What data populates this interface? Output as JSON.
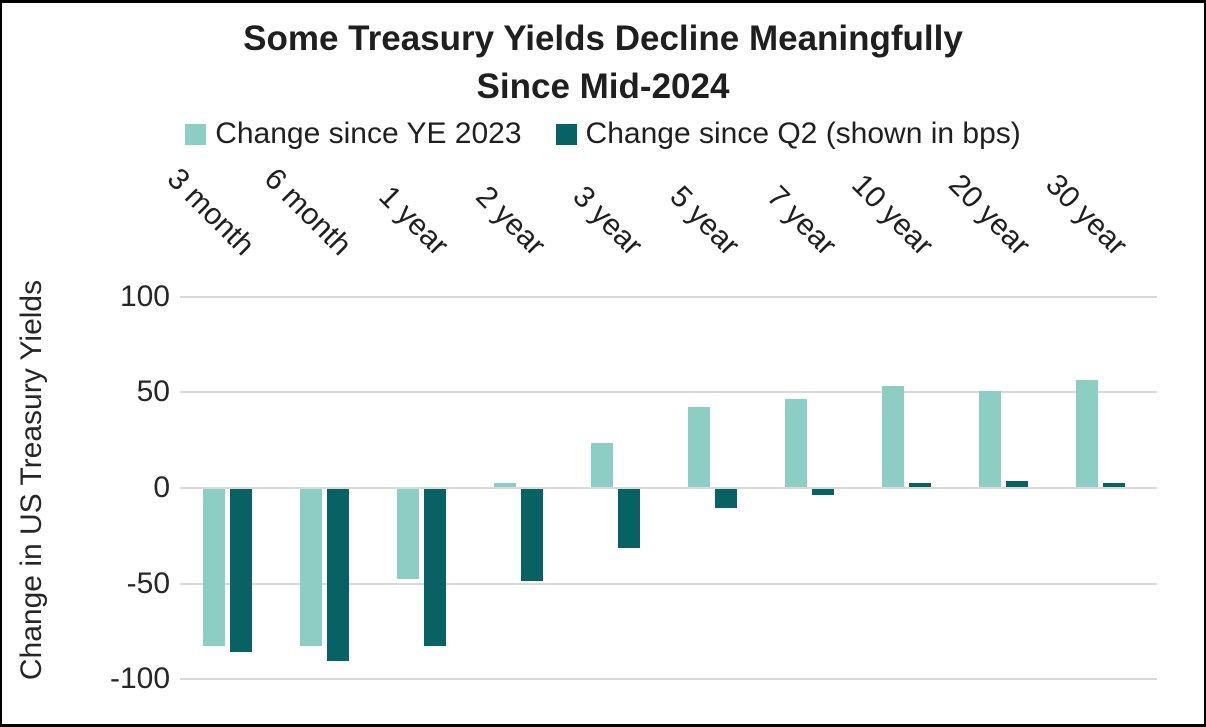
{
  "chart_data": {
    "type": "bar",
    "title": "Some Treasury Yields Decline Meaningfully",
    "subtitle": "Since Mid-2024",
    "ylabel": "Change in US Treasury Yields",
    "categories": [
      "3 month",
      "6 month",
      "1 year",
      "2 year",
      "3 year",
      "5 year",
      "7 year",
      "10 year",
      "20 year",
      "30 year"
    ],
    "series": [
      {
        "name": "Change since YE 2023",
        "color": "#8CCEC4",
        "values": [
          -82,
          -82,
          -47,
          2,
          23,
          42,
          46,
          53,
          50,
          56
        ]
      },
      {
        "name": "Change since Q2 (shown in bps)",
        "color": "#086263",
        "values": [
          -85,
          -90,
          -82,
          -48,
          -31,
          -10,
          -3,
          2,
          3,
          2
        ]
      }
    ],
    "yticks": [
      100,
      50,
      0,
      -50,
      -100
    ],
    "ylim": [
      -100,
      100
    ],
    "unit": "bps",
    "grid": "horizontal",
    "legend_position": "top"
  },
  "colors": {
    "background": "#FFFFFF",
    "gridline": "#D9D9D9",
    "text": "#1F1F1F",
    "frame_border": "#000000",
    "series_light": "#8CCEC4",
    "series_dark": "#086263"
  }
}
